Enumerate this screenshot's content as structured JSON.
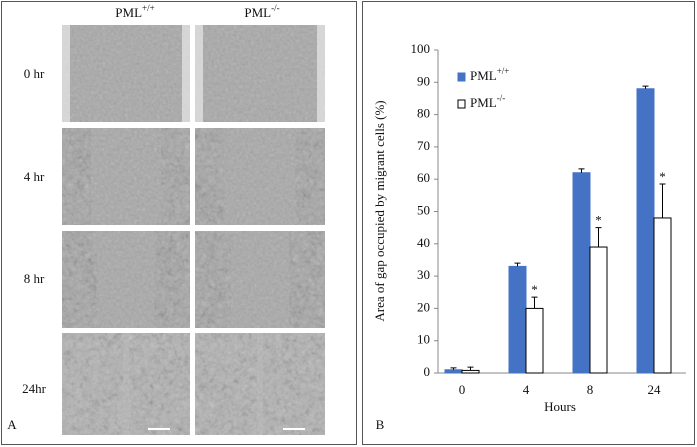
{
  "panel_a": {
    "label": "A",
    "columns": [
      "PML+/+",
      "PML-/-"
    ],
    "rows": [
      "0 hr",
      "4 hr",
      "8 hr",
      "24hr"
    ]
  },
  "chart_data": {
    "type": "bar",
    "panel_label": "B",
    "xlabel": "Hours",
    "ylabel": "Area of gap occupied by migrant  cells (%)",
    "categories": [
      "0",
      "4",
      "8",
      "24"
    ],
    "series": [
      {
        "name": "PML+/+",
        "color": "#4472c4",
        "values": [
          1,
          33,
          62,
          88
        ],
        "errors": [
          0.6,
          1,
          1.2,
          0.8
        ]
      },
      {
        "name": "PML-/-",
        "color": "#ffffff",
        "values": [
          0.8,
          20,
          39,
          48
        ],
        "errors": [
          1,
          3.5,
          6,
          10.5
        ],
        "significance": [
          null,
          "*",
          "*",
          "*"
        ]
      }
    ],
    "ylim": [
      0,
      100
    ],
    "yticks": [
      0,
      10,
      20,
      30,
      40,
      50,
      60,
      70,
      80,
      90,
      100
    ],
    "legend": "top-left"
  }
}
